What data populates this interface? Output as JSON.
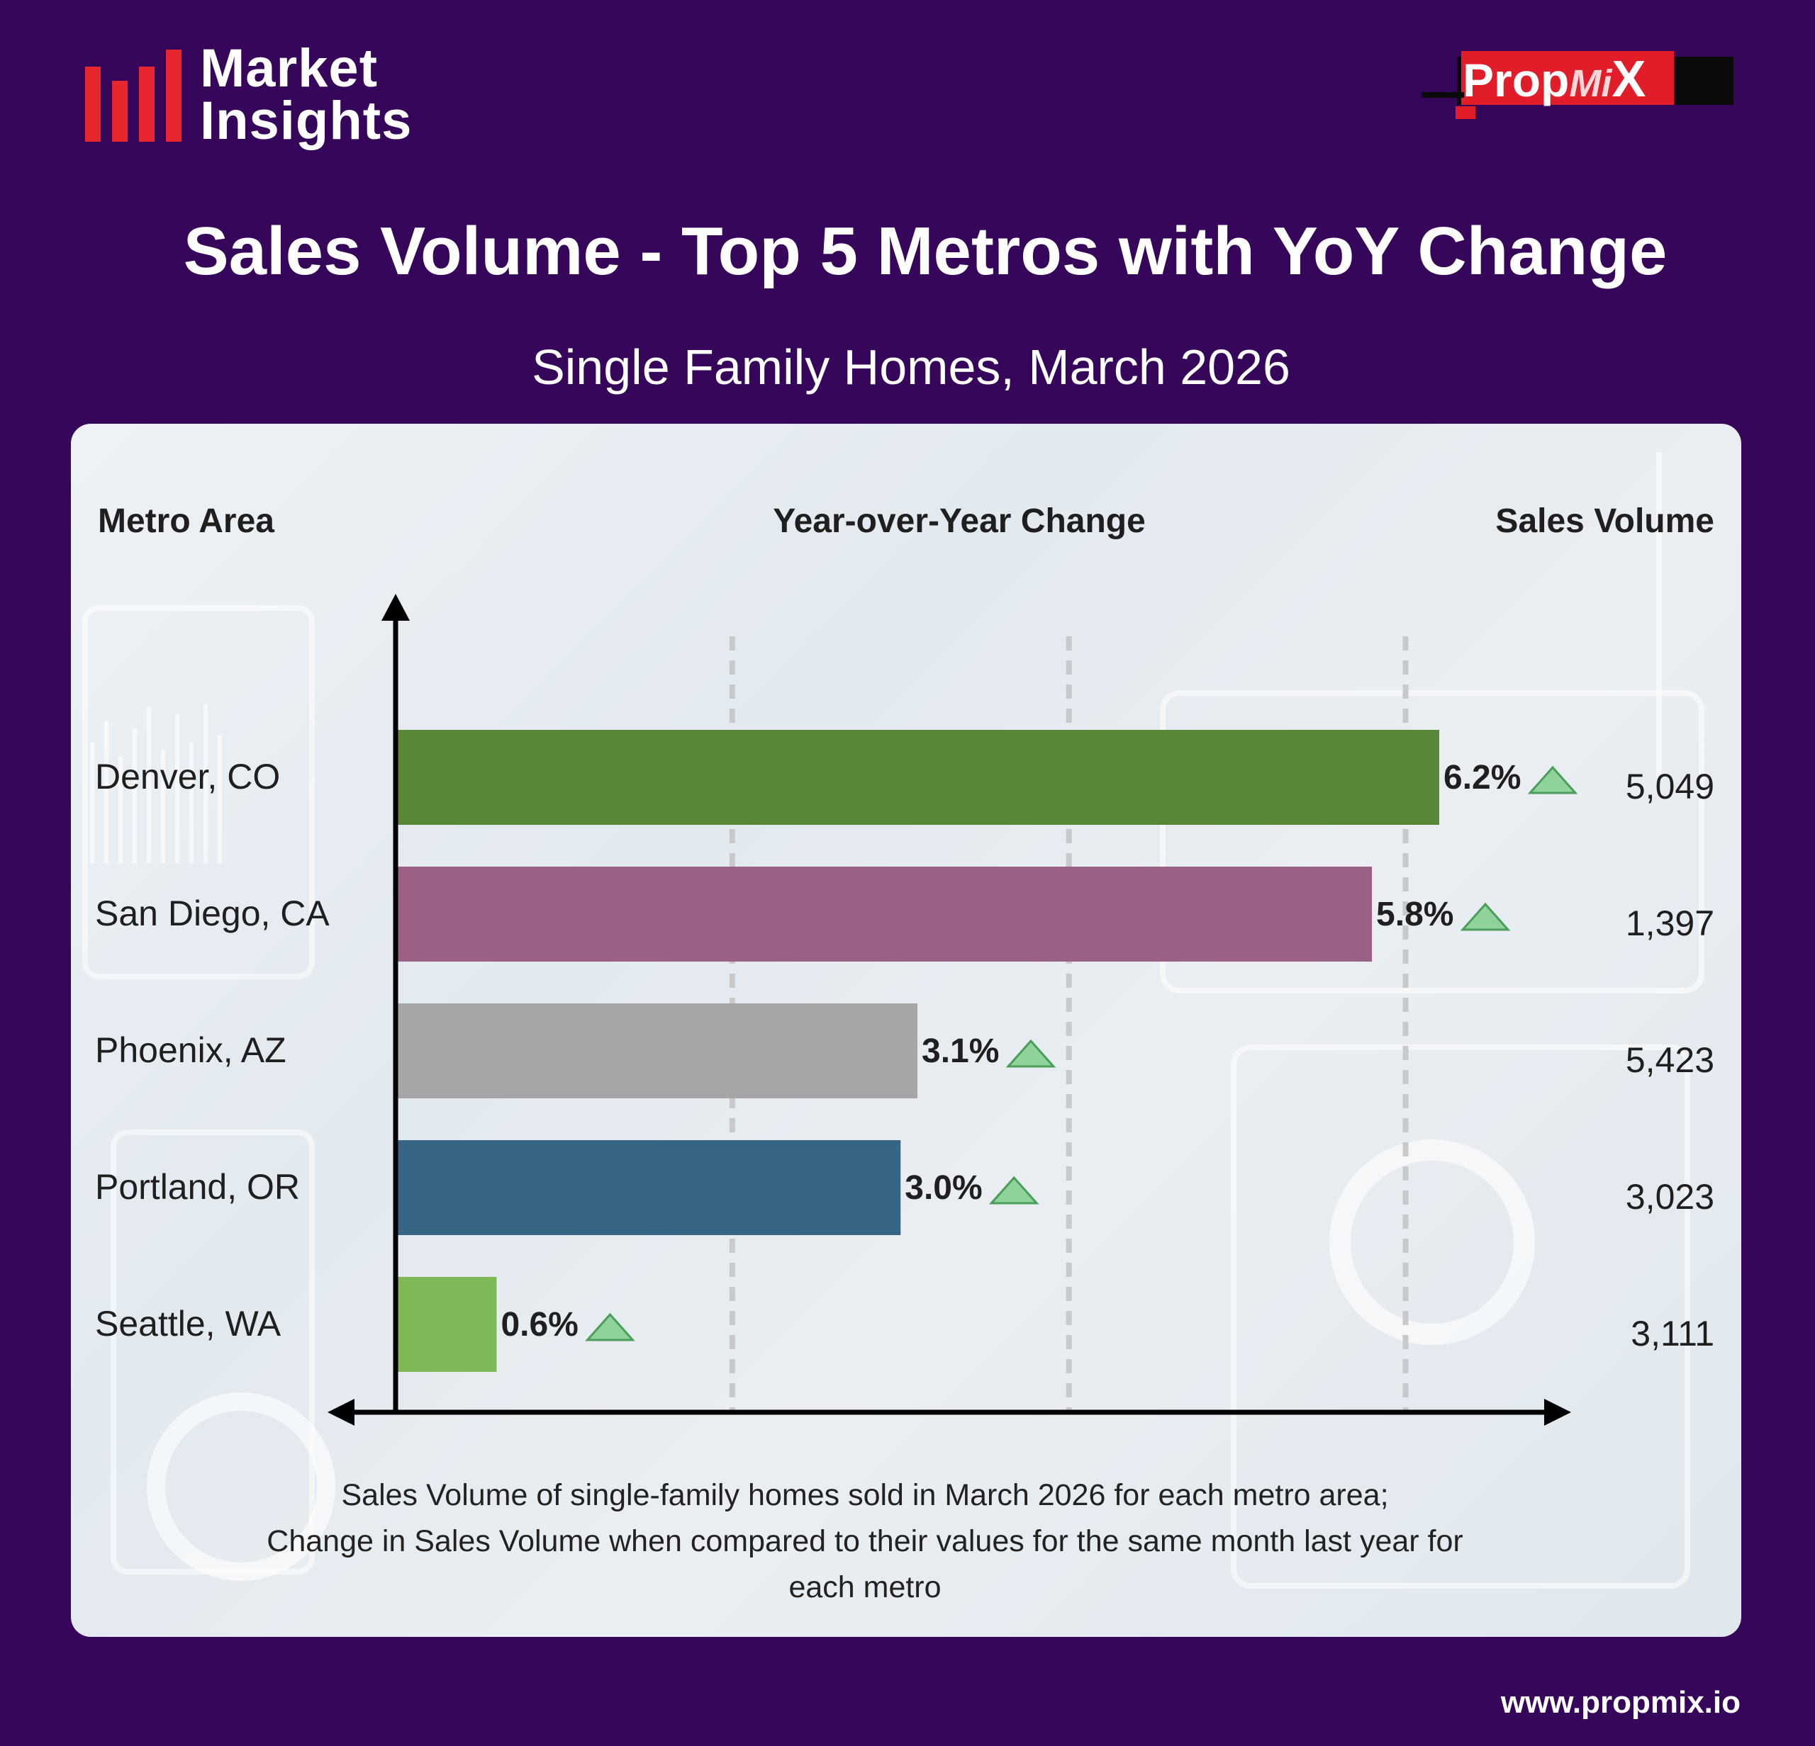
{
  "brand": {
    "line1": "Market",
    "line2": "Insights",
    "accent": "#e8262d"
  },
  "logo": {
    "part1": "Prop",
    "part2": "Mi",
    "part3": "X"
  },
  "header": {
    "title": "Sales Volume - Top 5 Metros with YoY Change",
    "subtitle": "Single Family Homes, March 2026"
  },
  "columns": {
    "metro": "Metro Area",
    "change": "Year-over-Year Change",
    "volume": "Sales Volume"
  },
  "chart_data": {
    "type": "bar",
    "orientation": "horizontal",
    "categories": [
      "Denver, CO",
      "San Diego, CA",
      "Phoenix, AZ",
      "Portland, OR",
      "Seattle, WA"
    ],
    "values": [
      6.2,
      5.8,
      3.1,
      3.0,
      0.6
    ],
    "value_labels": [
      "6.2%",
      "5.8%",
      "3.1%",
      "3.0%",
      "0.6%"
    ],
    "sales_volume": [
      "5,049",
      "1,397",
      "5,423",
      "3,023",
      "3,111"
    ],
    "trend": [
      "up",
      "up",
      "up",
      "up",
      "up"
    ],
    "colors": [
      "#5a8638",
      "#9b6184",
      "#a6a6a6",
      "#376585",
      "#7fb957"
    ],
    "xlim": [
      0,
      6.2
    ],
    "gridlines_at": [
      2,
      4,
      6
    ],
    "grid": true,
    "xlabel": "",
    "ylabel": ""
  },
  "footnote": {
    "line1": "Sales Volume of single-family homes sold in March 2026 for each metro area;",
    "line2": "Change in Sales Volume when compared to their values for the same month last year for",
    "line3": "each metro"
  },
  "footer": {
    "url": "www.propmix.io"
  }
}
